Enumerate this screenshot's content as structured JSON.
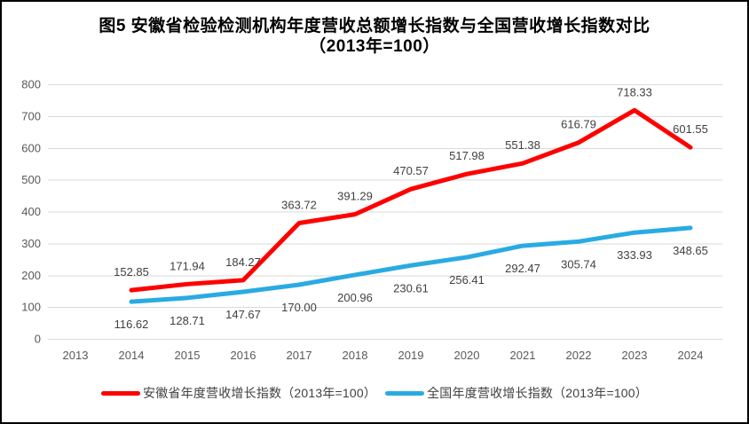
{
  "chart_data": {
    "type": "line",
    "title_line1": "图5  安徽省检验检测机构年度营收总额增长指数与全国营收增长指数对比",
    "title_line2": "（2013年=100）",
    "categories": [
      "2013",
      "2014",
      "2015",
      "2016",
      "2017",
      "2018",
      "2019",
      "2020",
      "2021",
      "2022",
      "2023",
      "2024"
    ],
    "series": [
      {
        "name": "安徽省年度营收增长指数（2013年=100）",
        "color": "#FF0000",
        "label_position": "above",
        "values": [
          null,
          152.85,
          171.94,
          184.27,
          363.72,
          391.29,
          470.57,
          517.98,
          551.38,
          616.79,
          718.33,
          601.55
        ]
      },
      {
        "name": "全国年度营收增长指数（2013年=100）",
        "color": "#29ABE2",
        "label_position": "below",
        "values": [
          null,
          116.62,
          128.71,
          147.67,
          170.0,
          200.96,
          230.61,
          256.41,
          292.47,
          305.74,
          333.93,
          348.65
        ]
      }
    ],
    "ylim": [
      0,
      800
    ],
    "ytick_step": 100,
    "yticks": [
      "0",
      "100",
      "200",
      "300",
      "400",
      "500",
      "600",
      "700",
      "800"
    ],
    "grid": true,
    "legend_position": "bottom",
    "label_decimals": 2,
    "colors": {
      "gridline": "#D9D9D9",
      "axis_label": "#595959",
      "data_label": "#404040",
      "title": "#000000",
      "frame_border": "#000000"
    }
  }
}
